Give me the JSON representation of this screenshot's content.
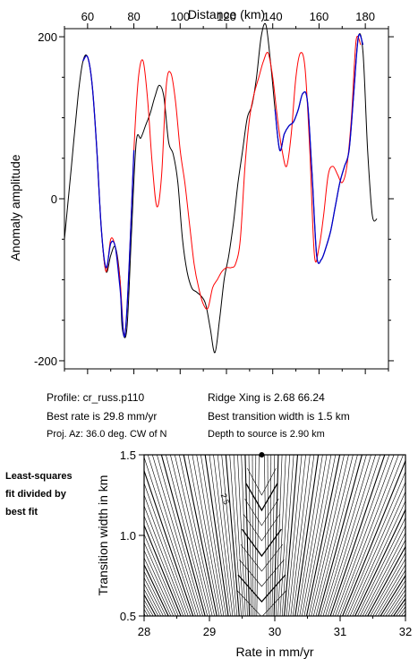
{
  "info": {
    "profile": "Profile: cr_russ.p110",
    "best_rate": "Best rate is 29.8 mm/yr",
    "proj_az": "Proj. Az: 36.0 deg. CW of N",
    "ridge_xing": "Ridge Xing is 2.68 66.24",
    "best_width": "Best transition width is 1.5 km",
    "depth": "Depth to source is   2.90 km"
  },
  "side_label": {
    "line1": "Least-squares",
    "line2": "fit divided by",
    "line3": "best fit"
  },
  "colors": {
    "observed": "#000000",
    "model": "#ff0000",
    "fit": "#0000cc"
  },
  "chart_data": [
    {
      "type": "line",
      "xlabel": "Distance (km)",
      "ylabel": "Anomaly amplitude",
      "xlim": [
        50,
        190
      ],
      "ylim": [
        -210,
        210
      ],
      "xticks": [
        60,
        80,
        100,
        120,
        140,
        160,
        180
      ],
      "yticks": [
        -200,
        0,
        200
      ],
      "grid": false,
      "series": [
        {
          "color": "black",
          "x": [
            50,
            53,
            56,
            58,
            60,
            62,
            64,
            66,
            68,
            70,
            72,
            74,
            75,
            77,
            79,
            81,
            83,
            85,
            87,
            89,
            91,
            93,
            95,
            97,
            99,
            101,
            103,
            105,
            107,
            109,
            111,
            113,
            115,
            117,
            119,
            121,
            123,
            125,
            127,
            129,
            131,
            133,
            135,
            137,
            139,
            141,
            143,
            145,
            147,
            149,
            151,
            153,
            155,
            157,
            159,
            161,
            163,
            165,
            167,
            169,
            171,
            173,
            175,
            177,
            179,
            181,
            183,
            185
          ],
          "y": [
            -50,
            40,
            130,
            170,
            175,
            140,
            60,
            -40,
            -90,
            -70,
            -60,
            -100,
            -160,
            -160,
            -40,
            70,
            75,
            90,
            105,
            125,
            140,
            125,
            70,
            55,
            20,
            -50,
            -90,
            -110,
            -115,
            -120,
            -130,
            -160,
            -190,
            -150,
            -100,
            -70,
            -30,
            20,
            60,
            100,
            115,
            150,
            200,
            215,
            170,
            110,
            60,
            80,
            90,
            95,
            110,
            130,
            120,
            30,
            -70,
            -75,
            -60,
            -40,
            -10,
            20,
            40,
            60,
            130,
            200,
            180,
            60,
            -20,
            -25
          ]
        },
        {
          "color": "red",
          "x": [
            58,
            60,
            62,
            64,
            66,
            68,
            70,
            72,
            74,
            76,
            78,
            80,
            82,
            84,
            86,
            88,
            90,
            92,
            94,
            96,
            98,
            100,
            102,
            104,
            106,
            108,
            110,
            112,
            114,
            116,
            118,
            120,
            122,
            124,
            126,
            128,
            130,
            132,
            134,
            136,
            138,
            140,
            142,
            144,
            146,
            148,
            150,
            152,
            154,
            156,
            158,
            160,
            162,
            164,
            166,
            168,
            170,
            172,
            174,
            176,
            178
          ],
          "y": [
            170,
            175,
            140,
            60,
            -40,
            -90,
            -50,
            -60,
            -100,
            -170,
            -80,
            60,
            150,
            170,
            120,
            40,
            -10,
            30,
            140,
            155,
            120,
            60,
            20,
            -30,
            -80,
            -110,
            -130,
            -135,
            -110,
            -100,
            -90,
            -85,
            -85,
            -80,
            -50,
            40,
            100,
            130,
            150,
            170,
            180,
            150,
            100,
            60,
            40,
            80,
            150,
            180,
            160,
            60,
            -70,
            -60,
            -20,
            30,
            40,
            30,
            20,
            40,
            100,
            195,
            190
          ]
        },
        {
          "color": "blue",
          "x": [
            58,
            60,
            62,
            64,
            66,
            68,
            70,
            72,
            74,
            76,
            78,
            80,
            141,
            143,
            145,
            147,
            149,
            151,
            153,
            155,
            157,
            159,
            161,
            163,
            165,
            167,
            169,
            171,
            173,
            175,
            177,
            179
          ],
          "y": [
            170,
            175,
            140,
            60,
            -40,
            -85,
            -55,
            -60,
            -110,
            -170,
            -80,
            60,
            110,
            60,
            80,
            90,
            95,
            110,
            130,
            120,
            30,
            -70,
            -75,
            -60,
            -40,
            -10,
            20,
            40,
            60,
            130,
            200,
            190
          ]
        }
      ]
    },
    {
      "type": "heatmap",
      "xlabel": "Rate in mm/yr",
      "ylabel": "Transition width in km",
      "xlim": [
        28,
        32
      ],
      "ylim": [
        0.5,
        1.5
      ],
      "xticks": [
        28,
        29,
        30,
        31,
        32
      ],
      "yticks": [
        0.5,
        1.0,
        1.5
      ],
      "best_fit": {
        "x": 29.8,
        "y": 1.5
      },
      "contour_label": "2.5",
      "contour_label_at": {
        "x": 29.2,
        "y": 1.22
      }
    }
  ]
}
